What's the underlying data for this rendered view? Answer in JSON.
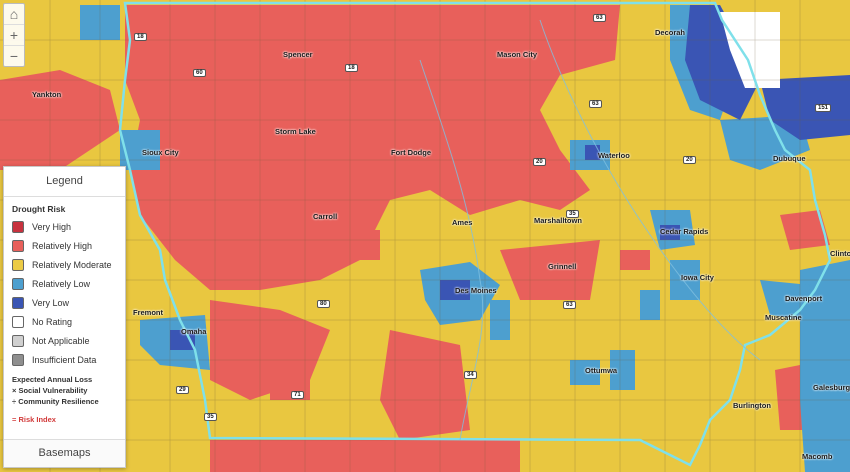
{
  "zoom": {
    "home": "⌂",
    "in": "+",
    "out": "−"
  },
  "legend": {
    "title": "Legend",
    "section": "Drought Risk",
    "items": [
      {
        "label": "Very High",
        "color": "#c7323e"
      },
      {
        "label": "Relatively High",
        "color": "#e8605b"
      },
      {
        "label": "Relatively Moderate",
        "color": "#eccb45"
      },
      {
        "label": "Relatively Low",
        "color": "#4d9fcf"
      },
      {
        "label": "Very Low",
        "color": "#3a55b4"
      },
      {
        "label": "No Rating",
        "color": "#ffffff"
      },
      {
        "label": "Not Applicable",
        "color": "#d0d0d0"
      },
      {
        "label": "Insufficient Data",
        "color": "#8f8f8f"
      }
    ],
    "formula": [
      "Expected Annual Loss",
      "× Social Vulnerability",
      "÷ Community Resilience"
    ],
    "risk_index": "= Risk Index",
    "basemaps": "Basemaps"
  },
  "places": [
    {
      "name": "Yankton"
    },
    {
      "name": "Spencer"
    },
    {
      "name": "Mason City"
    },
    {
      "name": "Decorah"
    },
    {
      "name": "Storm Lake"
    },
    {
      "name": "Fort Dodge"
    },
    {
      "name": "Waterloo"
    },
    {
      "name": "Dubuque"
    },
    {
      "name": "Sioux City"
    },
    {
      "name": "Carroll"
    },
    {
      "name": "Ames"
    },
    {
      "name": "Marshalltown"
    },
    {
      "name": "Cedar Rapids"
    },
    {
      "name": "Clinton"
    },
    {
      "name": "Grinnell"
    },
    {
      "name": "Des Moines"
    },
    {
      "name": "Iowa City"
    },
    {
      "name": "Davenport"
    },
    {
      "name": "Fremont"
    },
    {
      "name": "Omaha"
    },
    {
      "name": "Muscatine"
    },
    {
      "name": "Ottumwa"
    },
    {
      "name": "Burlington"
    },
    {
      "name": "Galesburg"
    },
    {
      "name": "Macomb"
    }
  ],
  "highways": [
    "18",
    "63",
    "60",
    "18",
    "20",
    "63",
    "151",
    "20",
    "35",
    "80",
    "34",
    "63",
    "29",
    "71",
    "35"
  ]
}
